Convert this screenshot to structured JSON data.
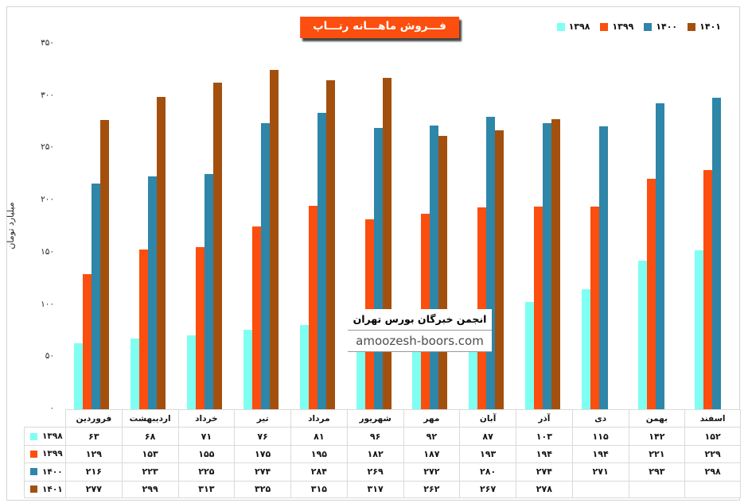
{
  "title": {
    "text": "فـــروش ماهـــانه رتـــاپ",
    "bg_color": "#FC4E0E",
    "text_color": "#FFFFFF"
  },
  "watermark": {
    "line1": "انجمن خبرگان بورس تهران",
    "line2": "amoozesh-boors.com"
  },
  "chart_data": {
    "type": "bar",
    "title": "فـــروش ماهـــانه رتـــاپ",
    "xlabel": "",
    "ylabel": "میلیارد تومان",
    "ylim": [
      0,
      350
    ],
    "y_ticks": [
      0,
      50,
      100,
      150,
      200,
      250,
      300,
      350
    ],
    "y_tick_labels": [
      "۰",
      "۵۰",
      "۱۰۰",
      "۱۵۰",
      "۲۰۰",
      "۲۵۰",
      "۳۰۰",
      "۳۵۰"
    ],
    "grid": false,
    "legend_position": "top-right",
    "categories": [
      "فروردین",
      "اردیبهشت",
      "خرداد",
      "تیر",
      "مرداد",
      "شهریور",
      "مهر",
      "آبان",
      "آذر",
      "دی",
      "بهمن",
      "اسفند"
    ],
    "series": [
      {
        "name": "۱۳۹۸",
        "color": "#7FFFF2",
        "values": [
          63,
          68,
          71,
          76,
          81,
          96,
          92,
          87,
          103,
          115,
          142,
          152
        ]
      },
      {
        "name": "۱۳۹۹",
        "color": "#FC4E0E",
        "values": [
          129,
          153,
          155,
          175,
          195,
          182,
          187,
          193,
          194,
          194,
          221,
          229
        ]
      },
      {
        "name": "۱۴۰۰",
        "color": "#2E86A8",
        "values": [
          216,
          223,
          225,
          274,
          284,
          269,
          272,
          280,
          274,
          271,
          293,
          298
        ]
      },
      {
        "name": "۱۴۰۱",
        "color": "#A3500F",
        "values": [
          277,
          299,
          313,
          325,
          315,
          317,
          262,
          267,
          278,
          null,
          null,
          null
        ]
      }
    ]
  }
}
